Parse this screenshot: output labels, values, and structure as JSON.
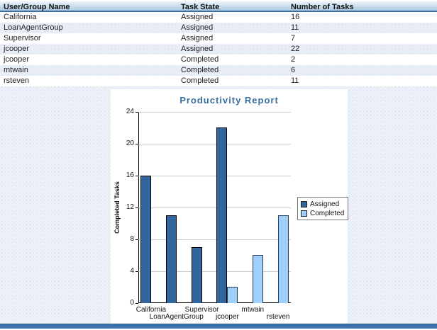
{
  "table": {
    "columns": [
      "User/Group Name",
      "Task State",
      "Number of Tasks"
    ],
    "rows": [
      [
        "California",
        "Assigned",
        "16"
      ],
      [
        "LoanAgentGroup",
        "Assigned",
        "11"
      ],
      [
        "Supervisor",
        "Assigned",
        "7"
      ],
      [
        "jcooper",
        "Assigned",
        "22"
      ],
      [
        "jcooper",
        "Completed",
        "2"
      ],
      [
        "mtwain",
        "Completed",
        "6"
      ],
      [
        "rsteven",
        "Completed",
        "11"
      ]
    ]
  },
  "chart_data": {
    "type": "bar",
    "title": "Productivity Report",
    "ylabel": "Completed Tasks",
    "categories": [
      "California",
      "LoanAgentGroup",
      "Supervisor",
      "jcooper",
      "mtwain",
      "rsteven"
    ],
    "series": [
      {
        "name": "Assigned",
        "color": "#33659e",
        "values": [
          16,
          11,
          7,
          22,
          null,
          null
        ]
      },
      {
        "name": "Completed",
        "color": "#9fd0fc",
        "values": [
          null,
          null,
          null,
          2,
          6,
          11
        ]
      }
    ],
    "ylim": [
      0,
      24
    ],
    "ytick_step": 4,
    "grid": true,
    "legend_position": "right"
  },
  "colors": {
    "assigned_bar": "#33659e",
    "completed_bar": "#9fd0fc",
    "title_text": "#3a6ea1",
    "header_border": "#3e6d9e",
    "bottom_bar": "#3f73b0",
    "page_background": "#edf1f8"
  }
}
